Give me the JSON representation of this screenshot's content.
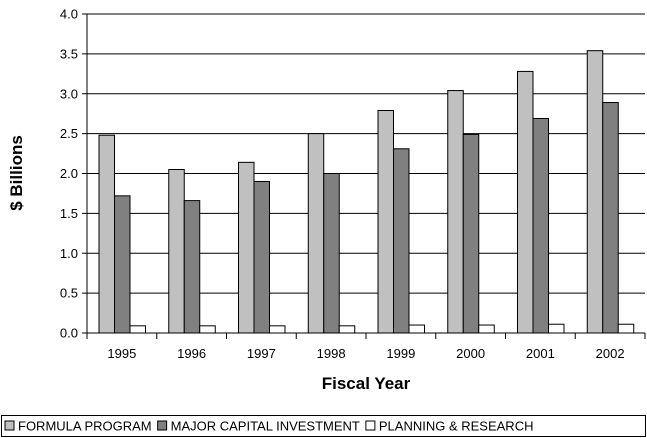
{
  "chart_data": {
    "type": "bar",
    "title": "",
    "xlabel": "Fiscal Year",
    "ylabel": "$ Billions",
    "ylim": [
      0,
      4.0
    ],
    "ytick_step": 0.5,
    "ytick_labels": [
      "0.0",
      "0.5",
      "1.0",
      "1.5",
      "2.0",
      "2.5",
      "3.0",
      "3.5",
      "4.0"
    ],
    "categories": [
      "1995",
      "1996",
      "1997",
      "1998",
      "1999",
      "2000",
      "2001",
      "2002"
    ],
    "grid": true,
    "legend_position": "bottom",
    "series": [
      {
        "name": "FORMULA PROGRAM",
        "color": "#c0c0c0",
        "values": [
          2.48,
          2.05,
          2.14,
          2.5,
          2.79,
          3.04,
          3.28,
          3.54
        ]
      },
      {
        "name": "MAJOR CAPITAL INVESTMENT",
        "color": "#808080",
        "values": [
          1.72,
          1.66,
          1.9,
          2.0,
          2.31,
          2.49,
          2.69,
          2.89
        ]
      },
      {
        "name": "PLANNING & RESEARCH",
        "color": "#ffffff",
        "values": [
          0.09,
          0.09,
          0.09,
          0.09,
          0.1,
          0.1,
          0.11,
          0.11
        ]
      }
    ]
  }
}
